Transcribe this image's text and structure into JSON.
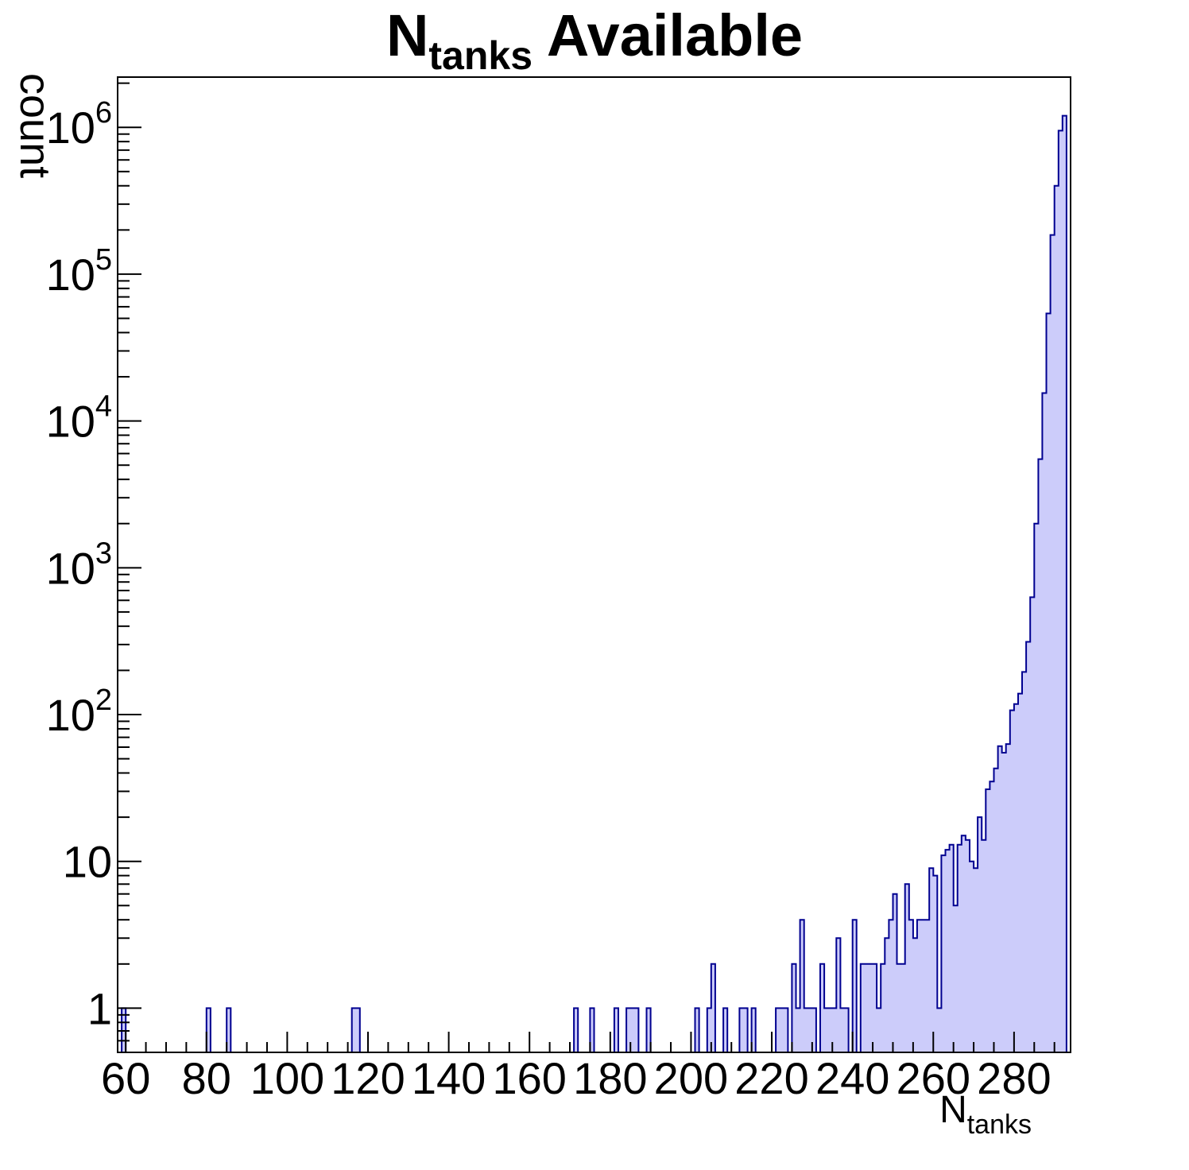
{
  "style": {
    "background": "#ffffff",
    "bar_fill": "#ccccfa",
    "bar_line": "#000090",
    "frame_color": "#000000",
    "text_color": "#000000"
  },
  "chart_data": {
    "type": "bar",
    "title": {
      "prefix": "N",
      "sub": "tanks",
      "rest": " Available"
    },
    "ylabel": "count",
    "xlabel": {
      "prefix": "N",
      "sub": "tanks"
    },
    "legend": "none",
    "grid": false,
    "x_axis": {
      "min": 58,
      "max": 294,
      "major_ticks": [
        60,
        80,
        100,
        120,
        140,
        160,
        180,
        200,
        220,
        240,
        260,
        280
      ],
      "minor_tick_step": 5
    },
    "y_axis": {
      "scale": "log",
      "min": 0.5,
      "max": 2200000,
      "decade_ticks": [
        1,
        10,
        100,
        1000,
        10000,
        100000,
        1000000
      ]
    },
    "y_tick_labels": [
      {
        "t": "1"
      },
      {
        "t": "10"
      },
      {
        "t": "10",
        "e": "2"
      },
      {
        "t": "10",
        "e": "3"
      },
      {
        "t": "10",
        "e": "4"
      },
      {
        "t": "10",
        "e": "5"
      },
      {
        "t": "10",
        "e": "6"
      }
    ],
    "bin_width": 1,
    "bins": [
      [
        59,
        1
      ],
      [
        80,
        1
      ],
      [
        85,
        1
      ],
      [
        116,
        1
      ],
      [
        117,
        1
      ],
      [
        171,
        1
      ],
      [
        175,
        1
      ],
      [
        181,
        1
      ],
      [
        184,
        1
      ],
      [
        185,
        1
      ],
      [
        186,
        1
      ],
      [
        189,
        1
      ],
      [
        201,
        1
      ],
      [
        204,
        1
      ],
      [
        205,
        2
      ],
      [
        208,
        1
      ],
      [
        212,
        1
      ],
      [
        213,
        1
      ],
      [
        215,
        1
      ],
      [
        221,
        1
      ],
      [
        222,
        1
      ],
      [
        223,
        1
      ],
      [
        225,
        2
      ],
      [
        226,
        1
      ],
      [
        227,
        4
      ],
      [
        228,
        1
      ],
      [
        229,
        1
      ],
      [
        230,
        1
      ],
      [
        232,
        2
      ],
      [
        233,
        1
      ],
      [
        234,
        1
      ],
      [
        235,
        1
      ],
      [
        236,
        3
      ],
      [
        237,
        1
      ],
      [
        238,
        1
      ],
      [
        240,
        4
      ],
      [
        242,
        2
      ],
      [
        243,
        2
      ],
      [
        244,
        2
      ],
      [
        245,
        2
      ],
      [
        246,
        1
      ],
      [
        247,
        2
      ],
      [
        248,
        3
      ],
      [
        249,
        4
      ],
      [
        250,
        6
      ],
      [
        251,
        2
      ],
      [
        252,
        2
      ],
      [
        253,
        7
      ],
      [
        254,
        4
      ],
      [
        255,
        3
      ],
      [
        256,
        4
      ],
      [
        257,
        4
      ],
      [
        258,
        4
      ],
      [
        259,
        9
      ],
      [
        260,
        8
      ],
      [
        261,
        1
      ],
      [
        262,
        11
      ],
      [
        263,
        12
      ],
      [
        264,
        13
      ],
      [
        265,
        5
      ],
      [
        266,
        13
      ],
      [
        267,
        15
      ],
      [
        268,
        14
      ],
      [
        269,
        10
      ],
      [
        270,
        9
      ],
      [
        271,
        20
      ],
      [
        272,
        14
      ],
      [
        273,
        31
      ],
      [
        274,
        35
      ],
      [
        275,
        43
      ],
      [
        276,
        61
      ],
      [
        277,
        55
      ],
      [
        278,
        63
      ],
      [
        279,
        107
      ],
      [
        280,
        118
      ],
      [
        281,
        139
      ],
      [
        282,
        195
      ],
      [
        283,
        313
      ],
      [
        284,
        630
      ],
      [
        285,
        2000
      ],
      [
        286,
        5500
      ],
      [
        287,
        15500
      ],
      [
        288,
        54000
      ],
      [
        289,
        185000
      ],
      [
        290,
        400000
      ],
      [
        291,
        950000
      ],
      [
        292,
        1200000
      ]
    ]
  }
}
